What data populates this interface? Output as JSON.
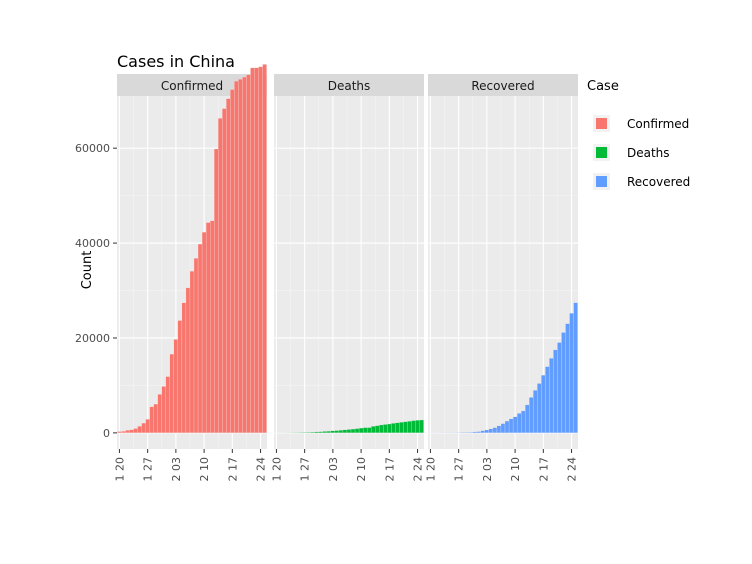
{
  "chart_data": {
    "type": "bar",
    "title": "Cases in China",
    "xlabel": "",
    "ylabel": "Count",
    "facet_labels": [
      "Confirmed",
      "Deaths",
      "Recovered"
    ],
    "x_tick_labels": [
      "1 20",
      "1 27",
      "2 03",
      "2 10",
      "2 17",
      "2 24"
    ],
    "y_tick_labels": [
      "0",
      "20000",
      "40000",
      "60000"
    ],
    "y_ticks": [
      0,
      20000,
      40000,
      60000
    ],
    "ylim": [
      -3400,
      71000
    ],
    "legend": {
      "title": "Case",
      "position": "right",
      "entries": [
        {
          "label": "Confirmed",
          "color": "#F8766D"
        },
        {
          "label": "Deaths",
          "color": "#00BA38"
        },
        {
          "label": "Recovered",
          "color": "#619CFF"
        }
      ]
    },
    "x": [
      "01-20",
      "01-21",
      "01-22",
      "01-23",
      "01-24",
      "01-25",
      "01-26",
      "01-27",
      "01-28",
      "01-29",
      "01-30",
      "01-31",
      "02-01",
      "02-02",
      "02-03",
      "02-04",
      "02-05",
      "02-06",
      "02-07",
      "02-08",
      "02-09",
      "02-10",
      "02-11",
      "02-12",
      "02-13",
      "02-14",
      "02-15",
      "02-16",
      "02-17",
      "02-18",
      "02-19",
      "02-20",
      "02-21",
      "02-22",
      "02-23",
      "02-24",
      "02-25"
    ],
    "series": [
      {
        "name": "Confirmed",
        "color": "#F8766D",
        "values": [
          278,
          326,
          547,
          639,
          916,
          1399,
          2062,
          2863,
          5494,
          6070,
          8124,
          9783,
          11871,
          16607,
          19693,
          23680,
          27409,
          30553,
          34075,
          36778,
          39790,
          42306,
          44327,
          44699,
          59832,
          66292,
          68347,
          70446,
          72364,
          74139,
          74546,
          74999,
          75472,
          76922,
          76938,
          77152,
          77660
        ]
      },
      {
        "name": "Deaths",
        "color": "#00BA38",
        "values": [
          6,
          9,
          17,
          25,
          41,
          56,
          80,
          106,
          132,
          170,
          213,
          259,
          304,
          361,
          425,
          490,
          562,
          632,
          717,
          804,
          904,
          1011,
          1111,
          1116,
          1368,
          1523,
          1666,
          1770,
          1868,
          2004,
          2118,
          2236,
          2345,
          2442,
          2592,
          2663,
          2715
        ]
      },
      {
        "name": "Recovered",
        "color": "#619CFF",
        "values": [
          0,
          0,
          28,
          30,
          36,
          39,
          49,
          58,
          101,
          120,
          135,
          214,
          275,
          463,
          614,
          843,
          1115,
          1476,
          1962,
          2493,
          2945,
          3383,
          4101,
          4619,
          5896,
          7474,
          8962,
          10411,
          12164,
          13966,
          15720,
          17487,
          19044,
          21157,
          23023,
          25216,
          27441
        ]
      }
    ]
  }
}
